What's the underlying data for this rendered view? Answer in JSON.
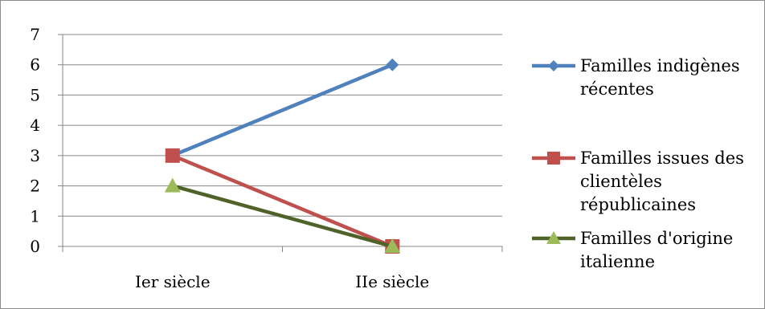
{
  "chart_data": {
    "type": "line",
    "categories": [
      "Ier siècle",
      "IIe siècle"
    ],
    "ylim": [
      0,
      7
    ],
    "yticks": [
      "0",
      "1",
      "2",
      "3",
      "4",
      "5",
      "6",
      "7"
    ],
    "grid": true,
    "legend_position": "right",
    "series": [
      {
        "name_lines": [
          "Familles indigènes",
          "récentes"
        ],
        "values": [
          3,
          6
        ],
        "color": "#4F81BD",
        "marker": "diamond"
      },
      {
        "name_lines": [
          "Familles issues des",
          "clientèles",
          "républicaines"
        ],
        "values": [
          3,
          0
        ],
        "color": "#C0504D",
        "marker": "square"
      },
      {
        "name_lines": [
          "Familles d'origine",
          "italienne"
        ],
        "values": [
          2,
          0
        ],
        "color": "#4F6228",
        "marker_color": "#9BBB59",
        "marker": "triangle"
      }
    ]
  }
}
